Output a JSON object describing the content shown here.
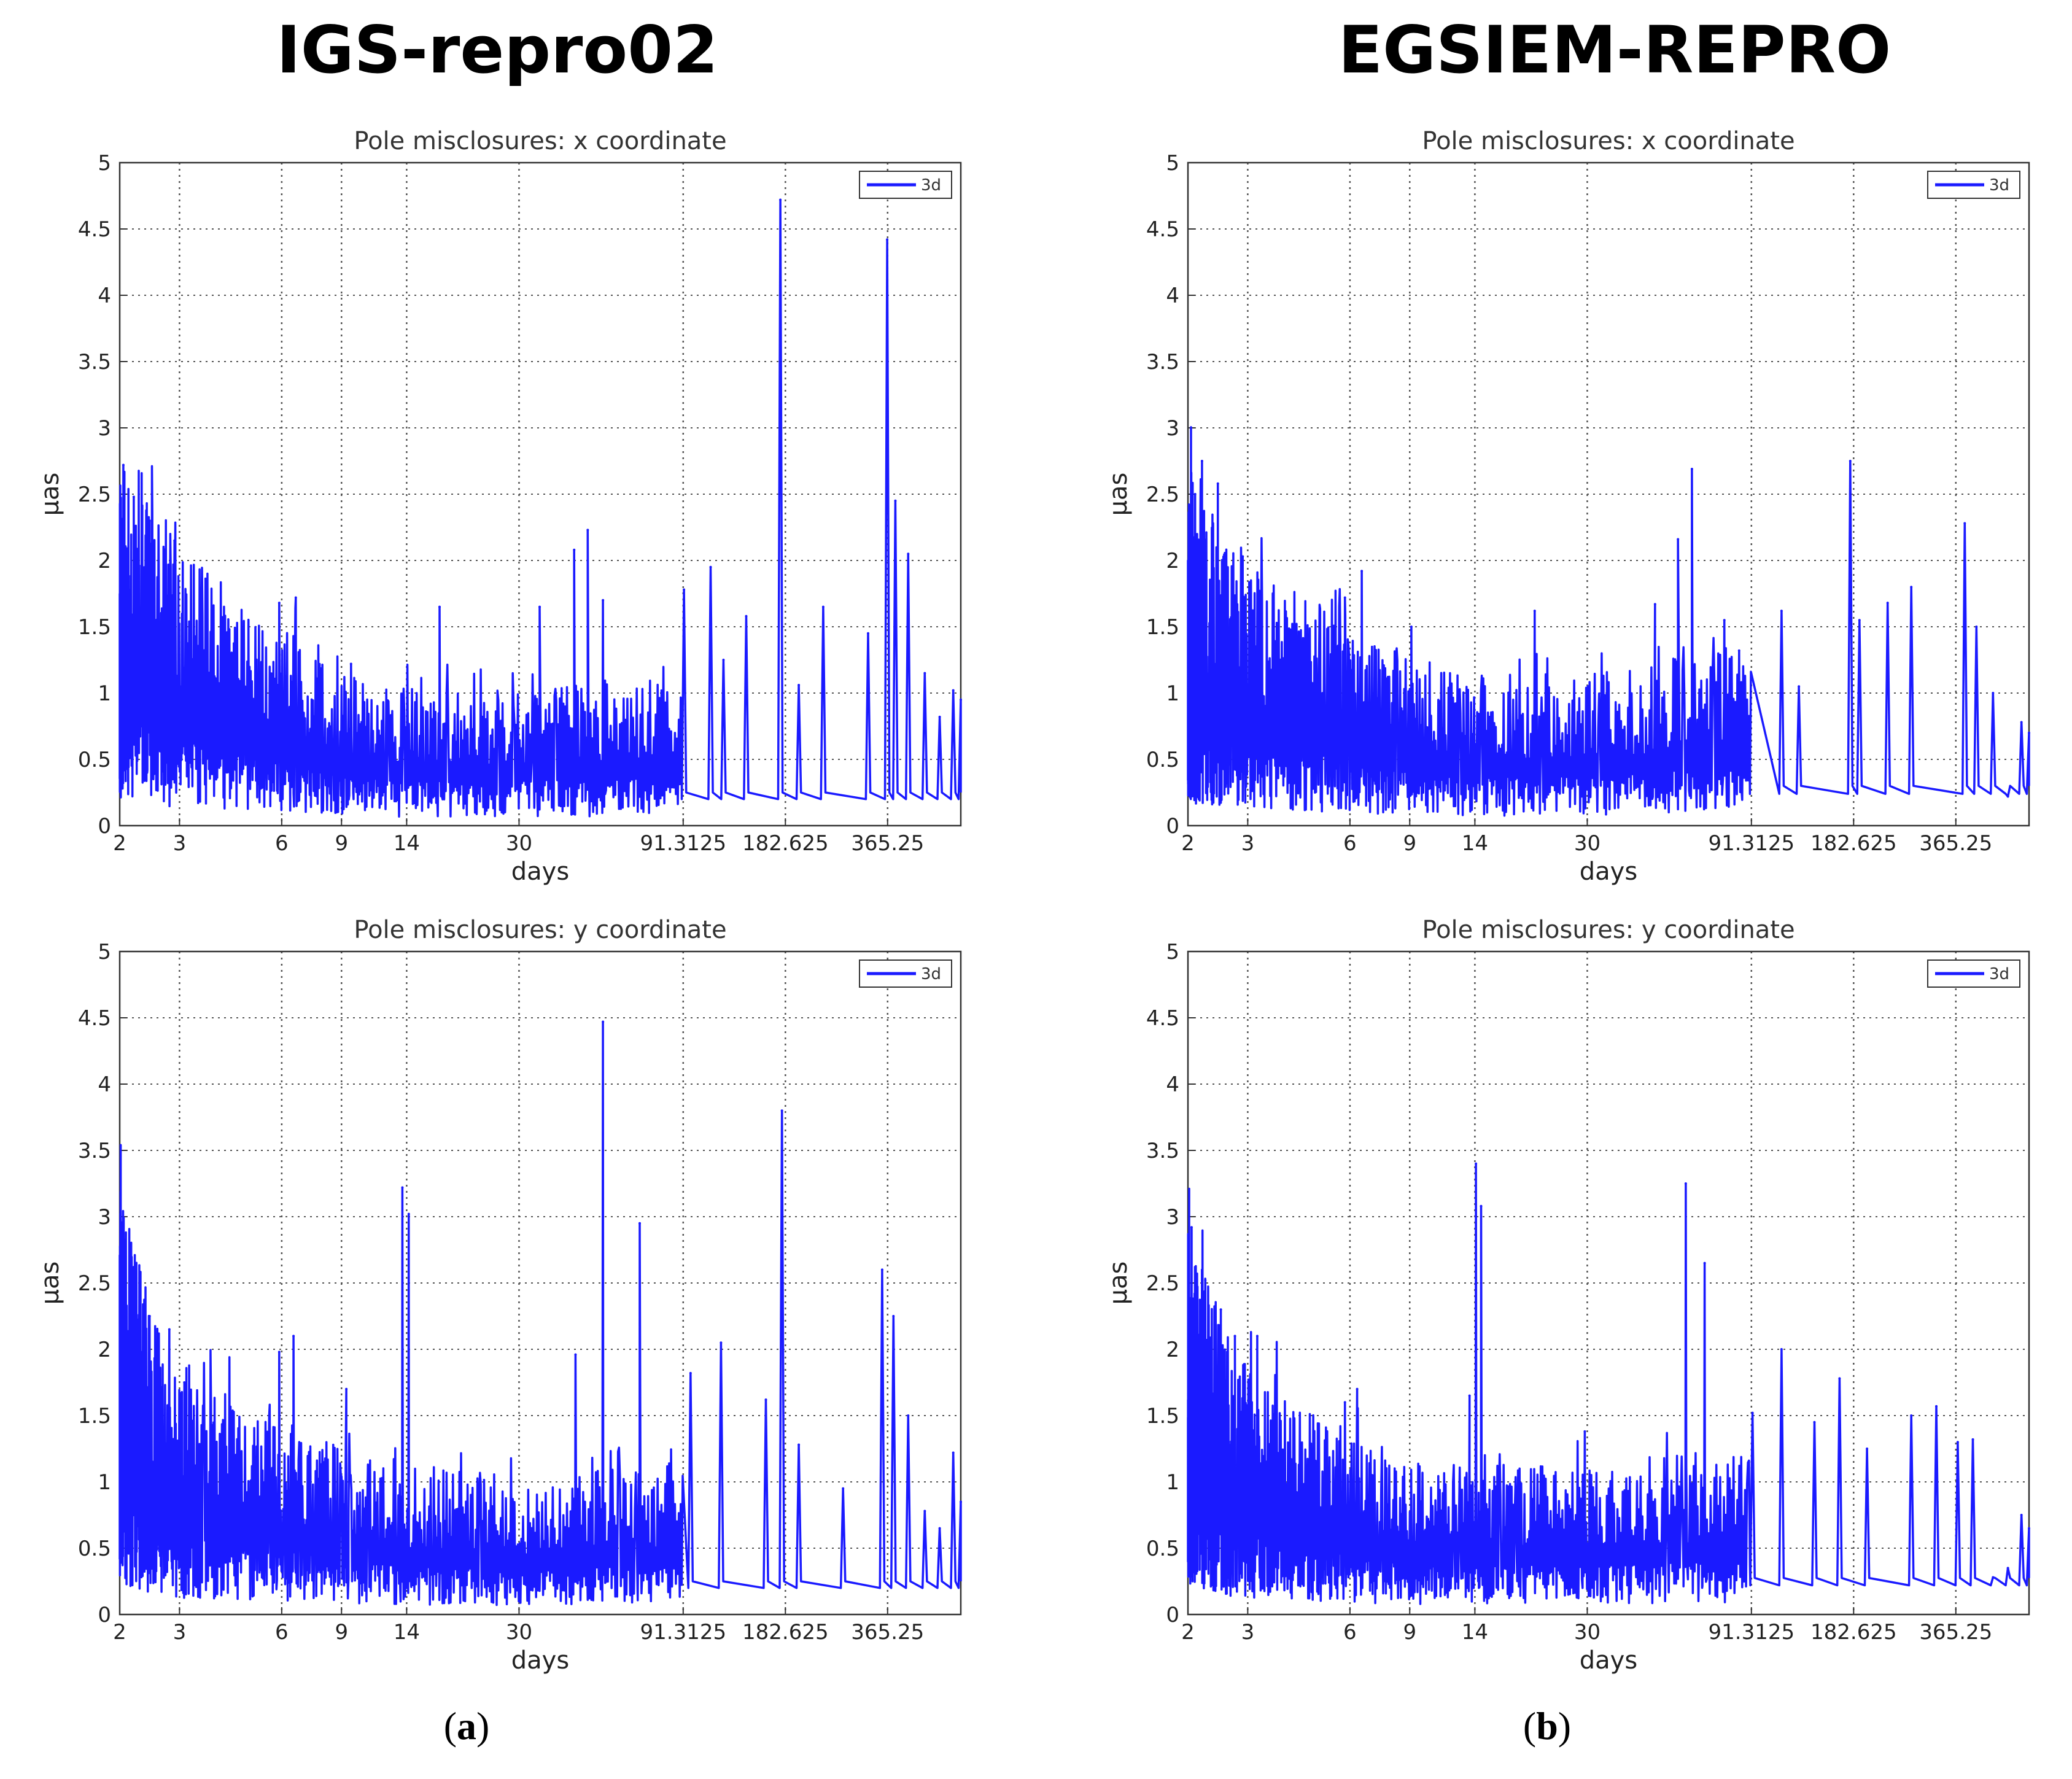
{
  "column_titles": [
    "IGS-repro02",
    "EGSIEM-REPRO"
  ],
  "panel_labels": [
    {
      "open": "(",
      "letter": "a",
      "close": ")"
    },
    {
      "open": "(",
      "letter": "b",
      "close": ")"
    }
  ],
  "colors": {
    "series": "#1a1aff",
    "grid": "#555555",
    "axis": "#333333"
  },
  "chart_data": [
    {
      "type": "line",
      "panel": "a",
      "column": "IGS-repro02",
      "title": "Pole misclosures: x coordinate",
      "xlabel": "days",
      "ylabel": "μas",
      "x_scale": "log",
      "xlim": [
        2,
        600
      ],
      "ylim": [
        0,
        5
      ],
      "grid": true,
      "legend_position": "top-right",
      "x_ticks": [
        {
          "v": 2,
          "label": "2"
        },
        {
          "v": 3,
          "label": "3"
        },
        {
          "v": 6,
          "label": "6"
        },
        {
          "v": 9,
          "label": "9"
        },
        {
          "v": 14,
          "label": "14"
        },
        {
          "v": 30,
          "label": "30"
        },
        {
          "v": 91.3125,
          "label": "91.3125"
        },
        {
          "v": 182.625,
          "label": "182.625"
        },
        {
          "v": 365.25,
          "label": "365.25"
        }
      ],
      "y_ticks": [
        "0",
        "0.5",
        "1",
        "1.5",
        "2",
        "2.5",
        "3",
        "3.5",
        "4",
        "4.5",
        "5"
      ],
      "series": [
        {
          "name": "3d",
          "seed": 11,
          "base": [
            [
              2,
              1.2
            ],
            [
              3,
              0.9
            ],
            [
              6,
              0.65
            ],
            [
              9,
              0.5
            ],
            [
              14,
              0.45
            ],
            [
              30,
              0.45
            ],
            [
              91.3,
              0.5
            ],
            [
              600,
              0.5
            ]
          ],
          "peaks": [
            [
              2.05,
              2.72
            ],
            [
              2.2,
              2.48
            ],
            [
              2.45,
              2.3
            ],
            [
              2.9,
              2.15
            ],
            [
              5.9,
              1.68
            ],
            [
              6.6,
              1.72
            ],
            [
              9.6,
              1.22
            ],
            [
              17.5,
              1.65
            ],
            [
              34.5,
              1.65
            ],
            [
              43.6,
              2.08
            ],
            [
              47.8,
              2.23
            ],
            [
              53,
              1.7
            ],
            [
              91.8,
              1.78
            ],
            [
              110,
              1.95
            ],
            [
              120,
              1.25
            ],
            [
              140,
              1.58
            ],
            [
              176.5,
              4.72
            ],
            [
              200,
              1.06
            ],
            [
              236,
              1.65
            ],
            [
              320,
              1.45
            ],
            [
              364.2,
              4.42
            ],
            [
              385,
              2.45
            ],
            [
              420,
              2.05
            ],
            [
              470,
              1.15
            ],
            [
              520,
              0.82
            ],
            [
              570,
              1.02
            ],
            [
              600,
              0.95
            ]
          ]
        }
      ]
    },
    {
      "type": "line",
      "panel": "b",
      "column": "EGSIEM-REPRO",
      "title": "Pole misclosures: x coordinate",
      "xlabel": "days",
      "ylabel": "μas",
      "x_scale": "log",
      "xlim": [
        2,
        600
      ],
      "ylim": [
        0,
        5
      ],
      "grid": true,
      "legend_position": "top-right",
      "x_ticks": [
        {
          "v": 2,
          "label": "2"
        },
        {
          "v": 3,
          "label": "3"
        },
        {
          "v": 6,
          "label": "6"
        },
        {
          "v": 9,
          "label": "9"
        },
        {
          "v": 14,
          "label": "14"
        },
        {
          "v": 30,
          "label": "30"
        },
        {
          "v": 91.3125,
          "label": "91.3125"
        },
        {
          "v": 182.625,
          "label": "182.625"
        },
        {
          "v": 365.25,
          "label": "365.25"
        }
      ],
      "y_ticks": [
        "0",
        "0.5",
        "1",
        "1.5",
        "2",
        "2.5",
        "3",
        "3.5",
        "4",
        "4.5",
        "5"
      ],
      "series": [
        {
          "name": "3d",
          "seed": 23,
          "base": [
            [
              2,
              1.15
            ],
            [
              3,
              0.85
            ],
            [
              6,
              0.65
            ],
            [
              9,
              0.55
            ],
            [
              14,
              0.5
            ],
            [
              30,
              0.5
            ],
            [
              91.3,
              0.6
            ],
            [
              600,
              0.6
            ]
          ],
          "peaks": [
            [
              2.1,
              2.5
            ],
            [
              2.2,
              2.75
            ],
            [
              2.45,
              2.58
            ],
            [
              2.9,
              2.03
            ],
            [
              5.8,
              1.72
            ],
            [
              6.5,
              1.92
            ],
            [
              9.1,
              1.5
            ],
            [
              21,
              1.62
            ],
            [
              47.5,
              1.67
            ],
            [
              55.5,
              2.16
            ],
            [
              61,
              2.69
            ],
            [
              76,
              1.55
            ],
            [
              84,
              1.32
            ],
            [
              112,
              1.62
            ],
            [
              126,
              1.05
            ],
            [
              178.5,
              2.75
            ],
            [
              190,
              1.55
            ],
            [
              230,
              1.68
            ],
            [
              270,
              1.8
            ],
            [
              388,
              2.28
            ],
            [
              420,
              1.5
            ],
            [
              470,
              1.0
            ],
            [
              520,
              0.22
            ],
            [
              570,
              0.78
            ],
            [
              600,
              0.7
            ]
          ]
        }
      ]
    },
    {
      "type": "line",
      "panel": "a",
      "column": "IGS-repro02",
      "title": "Pole misclosures: y coordinate",
      "xlabel": "days",
      "ylabel": "μas",
      "x_scale": "log",
      "xlim": [
        2,
        600
      ],
      "ylim": [
        0,
        5
      ],
      "grid": true,
      "legend_position": "top-right",
      "x_ticks": [
        {
          "v": 2,
          "label": "2"
        },
        {
          "v": 3,
          "label": "3"
        },
        {
          "v": 6,
          "label": "6"
        },
        {
          "v": 9,
          "label": "9"
        },
        {
          "v": 14,
          "label": "14"
        },
        {
          "v": 30,
          "label": "30"
        },
        {
          "v": 91.3125,
          "label": "91.3125"
        },
        {
          "v": 182.625,
          "label": "182.625"
        },
        {
          "v": 365.25,
          "label": "365.25"
        }
      ],
      "y_ticks": [
        "0",
        "0.5",
        "1",
        "1.5",
        "2",
        "2.5",
        "3",
        "3.5",
        "4",
        "4.5",
        "5"
      ],
      "series": [
        {
          "name": "3d",
          "seed": 37,
          "base": [
            [
              2,
              1.4
            ],
            [
              2.8,
              0.8
            ],
            [
              6,
              0.65
            ],
            [
              9,
              0.55
            ],
            [
              14,
              0.5
            ],
            [
              30,
              0.45
            ],
            [
              91.3,
              0.5
            ],
            [
              600,
              0.5
            ]
          ],
          "peaks": [
            [
              2.02,
              2.85
            ],
            [
              2.2,
              2.62
            ],
            [
              2.45,
              2.25
            ],
            [
              2.8,
              2.15
            ],
            [
              3.1,
              1.75
            ],
            [
              5.9,
              1.98
            ],
            [
              6.5,
              2.1
            ],
            [
              9.3,
              1.7
            ],
            [
              13.6,
              3.22
            ],
            [
              14.2,
              3.02
            ],
            [
              44,
              1.96
            ],
            [
              53,
              4.47
            ],
            [
              68,
              2.95
            ],
            [
              96,
              1.82
            ],
            [
              118,
              2.05
            ],
            [
              160,
              1.62
            ],
            [
              178.4,
              3.8
            ],
            [
              200,
              1.28
            ],
            [
              270,
              0.95
            ],
            [
              352,
              2.6
            ],
            [
              380,
              2.25
            ],
            [
              420,
              1.5
            ],
            [
              470,
              0.78
            ],
            [
              520,
              0.65
            ],
            [
              570,
              1.22
            ],
            [
              600,
              0.85
            ]
          ]
        }
      ]
    },
    {
      "type": "line",
      "panel": "b",
      "column": "EGSIEM-REPRO",
      "title": "Pole misclosures: y coordinate",
      "xlabel": "days",
      "ylabel": "μas",
      "x_scale": "log",
      "xlim": [
        2,
        600
      ],
      "ylim": [
        0,
        5
      ],
      "grid": true,
      "legend_position": "top-right",
      "x_ticks": [
        {
          "v": 2,
          "label": "2"
        },
        {
          "v": 3,
          "label": "3"
        },
        {
          "v": 6,
          "label": "6"
        },
        {
          "v": 9,
          "label": "9"
        },
        {
          "v": 14,
          "label": "14"
        },
        {
          "v": 30,
          "label": "30"
        },
        {
          "v": 91.3125,
          "label": "91.3125"
        },
        {
          "v": 182.625,
          "label": "182.625"
        },
        {
          "v": 365.25,
          "label": "365.25"
        }
      ],
      "y_ticks": [
        "0",
        "0.5",
        "1",
        "1.5",
        "2",
        "2.5",
        "3",
        "3.5",
        "4",
        "4.5",
        "5"
      ],
      "series": [
        {
          "name": "3d",
          "seed": 53,
          "base": [
            [
              2,
              1.3
            ],
            [
              2.8,
              0.85
            ],
            [
              6,
              0.6
            ],
            [
              9,
              0.5
            ],
            [
              14,
              0.5
            ],
            [
              30,
              0.5
            ],
            [
              91.3,
              0.55
            ],
            [
              600,
              0.55
            ]
          ],
          "peaks": [
            [
              2.05,
              2.92
            ],
            [
              2.25,
              2.52
            ],
            [
              2.5,
              2.3
            ],
            [
              2.75,
              2.1
            ],
            [
              3.2,
              2.1
            ],
            [
              5.8,
              1.6
            ],
            [
              6.3,
              1.7
            ],
            [
              13.5,
              1.65
            ],
            [
              14.1,
              3.4
            ],
            [
              14.6,
              3.08
            ],
            [
              29.5,
              1.38
            ],
            [
              58.5,
              3.25
            ],
            [
              66.5,
              2.65
            ],
            [
              92,
              1.52
            ],
            [
              112,
              2.0
            ],
            [
              140,
              1.45
            ],
            [
              166,
              1.78
            ],
            [
              200,
              1.25
            ],
            [
              270,
              1.5
            ],
            [
              320,
              1.57
            ],
            [
              370,
              1.3
            ],
            [
              410,
              1.32
            ],
            [
              470,
              0.28
            ],
            [
              520,
              0.35
            ],
            [
              570,
              0.75
            ],
            [
              600,
              0.65
            ]
          ]
        }
      ]
    }
  ]
}
